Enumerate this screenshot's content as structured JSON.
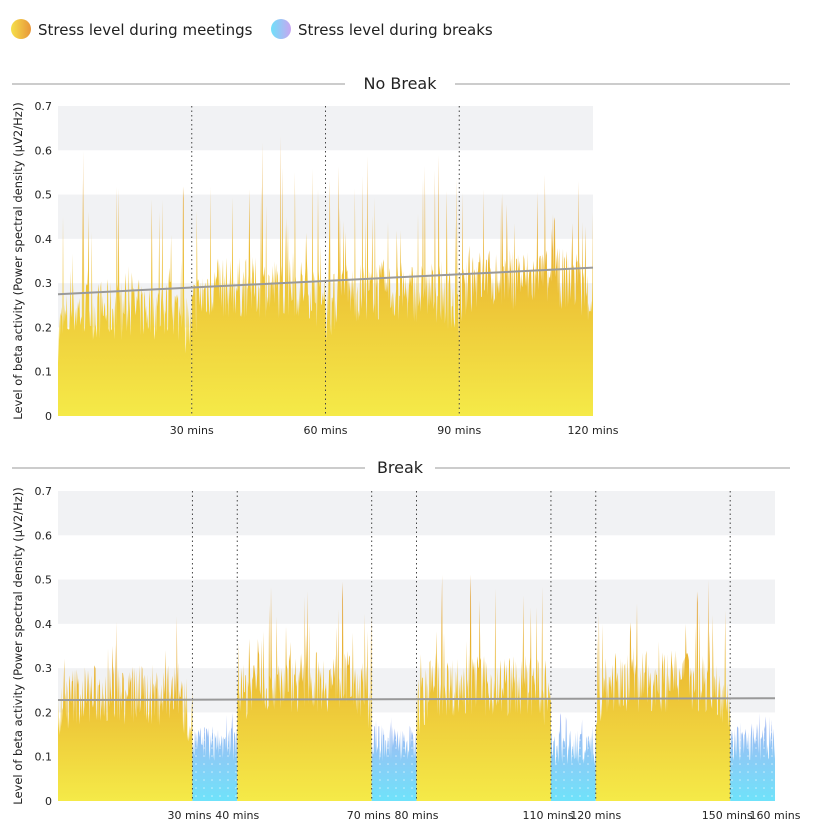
{
  "legend": {
    "meetings": "Stress level during meetings",
    "breaks": "Stress level during breaks"
  },
  "colors": {
    "meeting_top": "#e0962a",
    "meeting_bottom": "#f5ea48",
    "break_top": "#a8b4f2",
    "break_bottom": "#6fe2fa",
    "band": "#f1f2f4",
    "trend": "#999999"
  },
  "chart_data": [
    {
      "type": "area",
      "title": "No Break",
      "ylabel": "Level of beta activity (Power spectral density (μV2/Hz))",
      "ylim": [
        0,
        0.7
      ],
      "xlim": [
        0,
        120
      ],
      "yticks": [
        "0",
        "0.1",
        "0.2",
        "0.3",
        "0.4",
        "0.5",
        "0.6",
        "0.7"
      ],
      "xticks": [
        {
          "v": 30,
          "label": "30 mins"
        },
        {
          "v": 60,
          "label": "60 mins"
        },
        {
          "v": 90,
          "label": "90 mins"
        },
        {
          "v": 120,
          "label": "120 mins"
        }
      ],
      "dividers": [
        30,
        60,
        90
      ],
      "segments": [
        {
          "kind": "meeting",
          "start": 0,
          "end": 30,
          "base": 0.24,
          "peak": 0.6
        },
        {
          "kind": "meeting",
          "start": 30,
          "end": 60,
          "base": 0.29,
          "peak": 0.65
        },
        {
          "kind": "meeting",
          "start": 60,
          "end": 90,
          "base": 0.28,
          "peak": 0.6
        },
        {
          "kind": "meeting",
          "start": 90,
          "end": 120,
          "base": 0.31,
          "peak": 0.55
        }
      ],
      "trend": [
        [
          0,
          0.275
        ],
        [
          120,
          0.335
        ]
      ]
    },
    {
      "type": "area",
      "title": "Break",
      "ylabel": "Level of beta activity (Power spectral density (μV2/Hz))",
      "ylim": [
        0,
        0.7
      ],
      "xlim": [
        0,
        160
      ],
      "yticks": [
        "0",
        "0.1",
        "0.2",
        "0.3",
        "0.4",
        "0.5",
        "0.6",
        "0.7"
      ],
      "xticks": [
        {
          "v": 30,
          "label": "30 mins"
        },
        {
          "v": 40,
          "label": "40 mins"
        },
        {
          "v": 70,
          "label": "70 mins"
        },
        {
          "v": 80,
          "label": "80 mins"
        },
        {
          "v": 110,
          "label": "110 mins"
        },
        {
          "v": 120,
          "label": "120 mins"
        },
        {
          "v": 150,
          "label": "150 mins"
        },
        {
          "v": 160,
          "label": "160 mins"
        }
      ],
      "dividers": [
        30,
        40,
        70,
        80,
        110,
        120,
        150
      ],
      "segments": [
        {
          "kind": "meeting",
          "start": 0,
          "end": 30,
          "base": 0.24,
          "peak": 0.42
        },
        {
          "kind": "break",
          "start": 30,
          "end": 40,
          "base": 0.13,
          "peak": 0.2
        },
        {
          "kind": "meeting",
          "start": 40,
          "end": 70,
          "base": 0.27,
          "peak": 0.5
        },
        {
          "kind": "break",
          "start": 70,
          "end": 80,
          "base": 0.13,
          "peak": 0.2
        },
        {
          "kind": "meeting",
          "start": 80,
          "end": 110,
          "base": 0.26,
          "peak": 0.52
        },
        {
          "kind": "break",
          "start": 110,
          "end": 120,
          "base": 0.12,
          "peak": 0.2
        },
        {
          "kind": "meeting",
          "start": 120,
          "end": 150,
          "base": 0.27,
          "peak": 0.5
        },
        {
          "kind": "break",
          "start": 150,
          "end": 160,
          "base": 0.13,
          "peak": 0.2
        }
      ],
      "trend": [
        [
          0,
          0.228
        ],
        [
          160,
          0.232
        ]
      ]
    }
  ]
}
